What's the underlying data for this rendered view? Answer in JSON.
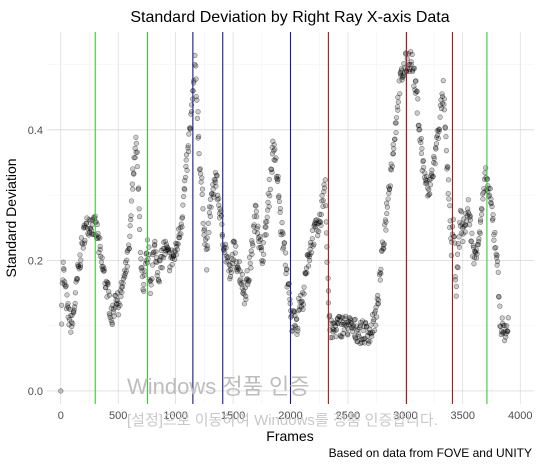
{
  "chart_data": {
    "type": "scatter",
    "title": "Standard Deviation by Right Ray X-axis Data",
    "xlabel": "Frames",
    "ylabel": "Standard Deviation",
    "caption": "Based on data from FOVE and UNITY",
    "xlim": [
      -120,
      4120
    ],
    "ylim": [
      -0.02,
      0.55
    ],
    "x_ticks": [
      0,
      500,
      1000,
      1500,
      2000,
      2500,
      3000,
      3500,
      4000
    ],
    "x_tick_labels": [
      "0",
      "500",
      "1000",
      "1500",
      "2000",
      "2500",
      "3000",
      "3500",
      "4000"
    ],
    "y_ticks": [
      0.0,
      0.2,
      0.4
    ],
    "y_tick_labels": [
      "0.0",
      "0.2",
      "0.4"
    ],
    "grid": true,
    "point_color": "#000000",
    "point_alpha": 0.2,
    "trace_x": [
      0,
      5,
      20,
      60,
      100,
      150,
      200,
      250,
      300,
      320,
      350,
      400,
      430,
      450,
      480,
      500,
      550,
      600,
      620,
      640,
      660,
      680,
      700,
      720,
      740,
      760,
      780,
      800,
      820,
      850,
      880,
      900,
      950,
      1000,
      1050,
      1100,
      1150,
      1170,
      1190,
      1210,
      1230,
      1250,
      1270,
      1300,
      1350,
      1400,
      1430,
      1450,
      1480,
      1500,
      1550,
      1600,
      1640,
      1700,
      1750,
      1800,
      1850,
      1900,
      1920,
      1950,
      1970,
      1990,
      2010,
      2040,
      2060,
      2080,
      2100,
      2150,
      2200,
      2250,
      2280,
      2300,
      2320,
      2340,
      2360,
      2400,
      2500,
      2600,
      2700,
      2750,
      2800,
      2850,
      2900,
      2950,
      3000,
      3050,
      3100,
      3150,
      3200,
      3250,
      3300,
      3330,
      3360,
      3380,
      3400,
      3420,
      3440,
      3460,
      3480,
      3500,
      3550,
      3600,
      3650,
      3700,
      3720,
      3750,
      3800,
      3830,
      3860,
      3900
    ],
    "trace_y": [
      0.0,
      0.12,
      0.19,
      0.12,
      0.1,
      0.18,
      0.24,
      0.26,
      0.25,
      0.24,
      0.2,
      0.16,
      0.13,
      0.11,
      0.15,
      0.13,
      0.17,
      0.22,
      0.3,
      0.36,
      0.38,
      0.28,
      0.2,
      0.14,
      0.19,
      0.22,
      0.16,
      0.2,
      0.22,
      0.18,
      0.2,
      0.22,
      0.2,
      0.21,
      0.26,
      0.35,
      0.45,
      0.5,
      0.43,
      0.35,
      0.3,
      0.25,
      0.2,
      0.28,
      0.33,
      0.25,
      0.22,
      0.2,
      0.17,
      0.22,
      0.19,
      0.15,
      0.18,
      0.28,
      0.2,
      0.27,
      0.38,
      0.3,
      0.25,
      0.21,
      0.18,
      0.14,
      0.1,
      0.12,
      0.1,
      0.14,
      0.13,
      0.2,
      0.24,
      0.25,
      0.29,
      0.33,
      0.2,
      0.1,
      0.09,
      0.1,
      0.1,
      0.09,
      0.09,
      0.12,
      0.21,
      0.3,
      0.38,
      0.47,
      0.5,
      0.51,
      0.45,
      0.35,
      0.3,
      0.35,
      0.42,
      0.46,
      0.35,
      0.3,
      0.22,
      0.25,
      0.16,
      0.21,
      0.27,
      0.24,
      0.28,
      0.2,
      0.25,
      0.33,
      0.31,
      0.28,
      0.2,
      0.1,
      0.09,
      0.1
    ],
    "vlines": [
      {
        "x": 300,
        "color": "#33cc33"
      },
      {
        "x": 755,
        "color": "#33cc33"
      },
      {
        "x": 1150,
        "color": "#1a1a8c"
      },
      {
        "x": 1410,
        "color": "#1a1a8c"
      },
      {
        "x": 2000,
        "color": "#1a1a8c"
      },
      {
        "x": 2330,
        "color": "#aa1a1a"
      },
      {
        "x": 3010,
        "color": "#aa1a1a"
      },
      {
        "x": 3410,
        "color": "#aa1a1a"
      },
      {
        "x": 3710,
        "color": "#33cc33"
      }
    ]
  },
  "watermark": {
    "line1": "Windows 정품 인증",
    "line2": "[설정]으로 이동하여 Windows를 정품 인증합니다."
  }
}
